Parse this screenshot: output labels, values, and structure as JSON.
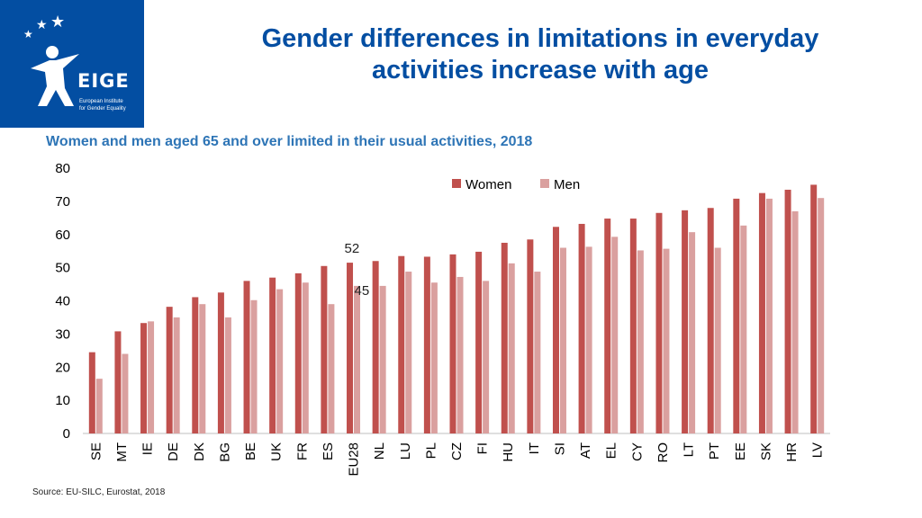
{
  "header": {
    "title_line1": "Gender differences in limitations in everyday",
    "title_line2": "activities increase with age"
  },
  "logo": {
    "brand": "EIGE",
    "subtitle_line1": "European Institute",
    "subtitle_line2": "for Gender Equality"
  },
  "source": "Source: EU-SILC, Eurostat, 2018",
  "chart_data": {
    "type": "bar",
    "title": "Women and men aged 65 and over limited in their usual activities, 2018",
    "xlabel": "",
    "ylabel": "",
    "ylim": [
      0,
      80
    ],
    "yticks": [
      "0",
      "10",
      "20",
      "30",
      "40",
      "50",
      "60",
      "70",
      "80"
    ],
    "categories": [
      "SE",
      "MT",
      "IE",
      "DE",
      "DK",
      "BG",
      "BE",
      "UK",
      "FR",
      "ES",
      "EU28",
      "NL",
      "LU",
      "PL",
      "CZ",
      "FI",
      "HU",
      "IT",
      "SI",
      "AT",
      "EL",
      "CY",
      "RO",
      "LT",
      "PT",
      "EE",
      "SK",
      "HR",
      "LV"
    ],
    "series": [
      {
        "name": "Women",
        "color": "#c0504d",
        "values": [
          24.5,
          30.8,
          33.3,
          38.2,
          41.1,
          42.5,
          46,
          47,
          48.3,
          50.5,
          51.5,
          52,
          53.5,
          53.3,
          54,
          54.8,
          57.5,
          58.5,
          62.3,
          63.2,
          64.8,
          64.8,
          66.5,
          67.3,
          68,
          70.8,
          72.5,
          73.5,
          75
        ]
      },
      {
        "name": "Men",
        "color": "#daa09f",
        "values": [
          16.5,
          24,
          33.8,
          35,
          39,
          35,
          40.2,
          43.5,
          45.5,
          39,
          44.5,
          44.5,
          48.8,
          45.5,
          47.2,
          46,
          51.3,
          48.8,
          56,
          56.3,
          59.3,
          55.2,
          55.7,
          60.7,
          56,
          62.7,
          70.8,
          67,
          71
        ]
      }
    ],
    "annotations": [
      {
        "text": "52",
        "category": "EU28",
        "series": "Women"
      },
      {
        "text": "45",
        "category": "EU28",
        "series": "Men"
      }
    ],
    "legend": [
      "Women",
      "Men"
    ],
    "legend_position": "top-right",
    "grid": false
  }
}
